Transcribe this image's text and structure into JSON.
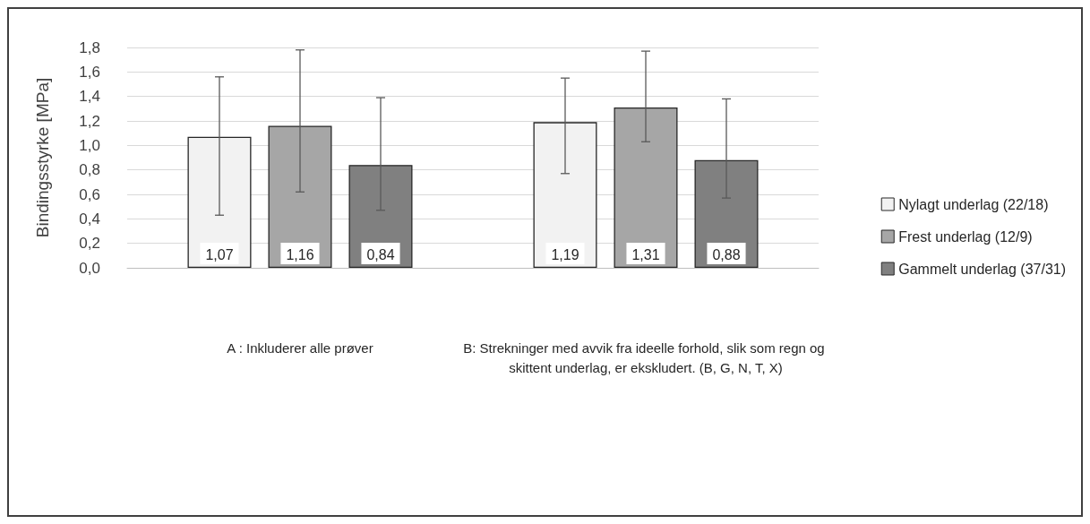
{
  "chart_data": {
    "type": "bar",
    "ylabel": "Bindingsstyrke [MPa]",
    "categories": [
      "A : Inkluderer alle prøver",
      "B: Strekninger med avvik fra ideelle forhold, slik som regn og skittent underlag, er ekskludert. (B, G, N, T, X)"
    ],
    "ylim": [
      0,
      1.8
    ],
    "yticks": [
      {
        "value": 0,
        "label": "0,0"
      },
      {
        "value": 0.2,
        "label": "0,2"
      },
      {
        "value": 0.4,
        "label": "0,4"
      },
      {
        "value": 0.6,
        "label": "0,6"
      },
      {
        "value": 0.8,
        "label": "0,8"
      },
      {
        "value": 1.0,
        "label": "1,0"
      },
      {
        "value": 1.2,
        "label": "1,2"
      },
      {
        "value": 1.4,
        "label": "1,4"
      },
      {
        "value": 1.6,
        "label": "1,6"
      },
      {
        "value": 1.8,
        "label": "1,8"
      }
    ],
    "grid": "y",
    "legend": "right",
    "series": [
      {
        "name": "Nylagt underlag (22/18)",
        "color": "#f2f2f2",
        "values": [
          1.07,
          1.19
        ],
        "value_labels": [
          "1,07",
          "1,19"
        ],
        "errors": [
          [
            0.43,
            1.56
          ],
          [
            0.77,
            1.55
          ]
        ]
      },
      {
        "name": "Frest underlag (12/9)",
        "color": "#a6a6a6",
        "values": [
          1.16,
          1.31
        ],
        "value_labels": [
          "1,16",
          "1,31"
        ],
        "errors": [
          [
            0.62,
            1.78
          ],
          [
            1.03,
            1.77
          ]
        ]
      },
      {
        "name": "Gammelt underlag (37/31)",
        "color": "#808080",
        "values": [
          0.84,
          0.88
        ],
        "value_labels": [
          "0,84",
          "0,88"
        ],
        "errors": [
          [
            0.47,
            1.39
          ],
          [
            0.57,
            1.38
          ]
        ]
      }
    ]
  }
}
